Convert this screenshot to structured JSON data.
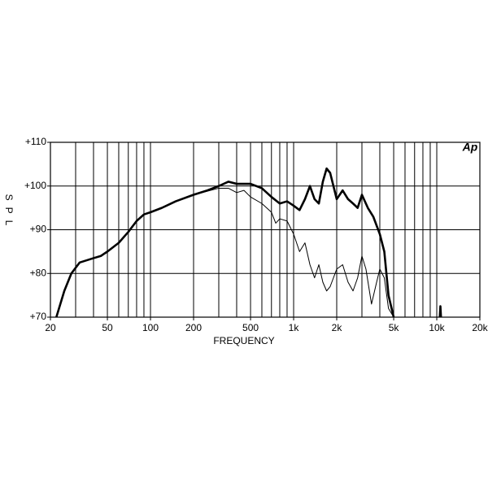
{
  "chart_data": {
    "type": "line",
    "logo": "Ap",
    "y_label": "SPL",
    "x_label": "FREQUENCY",
    "xscale": "log",
    "xlim": [
      20,
      20000
    ],
    "ylim": [
      70,
      110
    ],
    "xticks": [
      20,
      50,
      100,
      200,
      500,
      {
        "value": 1000,
        "label": "1k"
      },
      {
        "value": 2000,
        "label": "2k"
      },
      {
        "value": 5000,
        "label": "5k"
      },
      {
        "value": 10000,
        "label": "10k"
      },
      {
        "value": 20000,
        "label": "20k"
      }
    ],
    "yticks": [
      {
        "value": 70,
        "label": "+70"
      },
      {
        "value": 80,
        "label": "+80"
      },
      {
        "value": 90,
        "label": "+90"
      },
      {
        "value": 100,
        "label": "+100"
      },
      {
        "value": 110,
        "label": "+110"
      }
    ],
    "xgrid": [
      30,
      40,
      50,
      60,
      70,
      80,
      90,
      100,
      200,
      300,
      400,
      500,
      600,
      700,
      800,
      900,
      1000,
      2000,
      3000,
      4000,
      5000,
      6000,
      7000,
      8000,
      9000,
      10000
    ],
    "grid": true,
    "series": [
      {
        "color": "#000000",
        "line_width": 2.6,
        "x": [
          22,
          25,
          28,
          32,
          40,
          45,
          50,
          60,
          70,
          80,
          90,
          100,
          120,
          150,
          200,
          250,
          300,
          350,
          400,
          500,
          600,
          700,
          800,
          900,
          1000,
          1100,
          1200,
          1300,
          1400,
          1500,
          1600,
          1700,
          1800,
          2000,
          2200,
          2400,
          2600,
          2800,
          3000,
          3300,
          3600,
          4000,
          4300,
          4600,
          5000,
          10000,
          10500,
          10600,
          10700
        ],
        "values": [
          70,
          76,
          80,
          82.5,
          83.5,
          84,
          85,
          87,
          89.5,
          92,
          93.5,
          94,
          95,
          96.5,
          98,
          99,
          100,
          101,
          100.5,
          100.5,
          99.5,
          97.5,
          96,
          96.5,
          95.5,
          94.5,
          97,
          100,
          97,
          96,
          101,
          104,
          103,
          97,
          99,
          97,
          96,
          95,
          98,
          95,
          93,
          89,
          85,
          75,
          70,
          null,
          70,
          72.5,
          70
        ]
      },
      {
        "color": "#000000",
        "line_width": 1,
        "x": [
          200,
          300,
          350,
          400,
          450,
          500,
          600,
          700,
          750,
          800,
          900,
          1000,
          1100,
          1200,
          1300,
          1400,
          1500,
          1600,
          1700,
          1800,
          2000,
          2200,
          2400,
          2600,
          2800,
          3000,
          3200,
          3500,
          3800,
          4000,
          4300,
          4600,
          5000
        ],
        "values": [
          98,
          99.5,
          99.5,
          98.5,
          99,
          97.5,
          96,
          94,
          91.5,
          92.5,
          92,
          89,
          85,
          87,
          82,
          79,
          82,
          78,
          76,
          77,
          81,
          82,
          78,
          76,
          79,
          84,
          81,
          73,
          78,
          81,
          79,
          72,
          70
        ]
      }
    ]
  }
}
